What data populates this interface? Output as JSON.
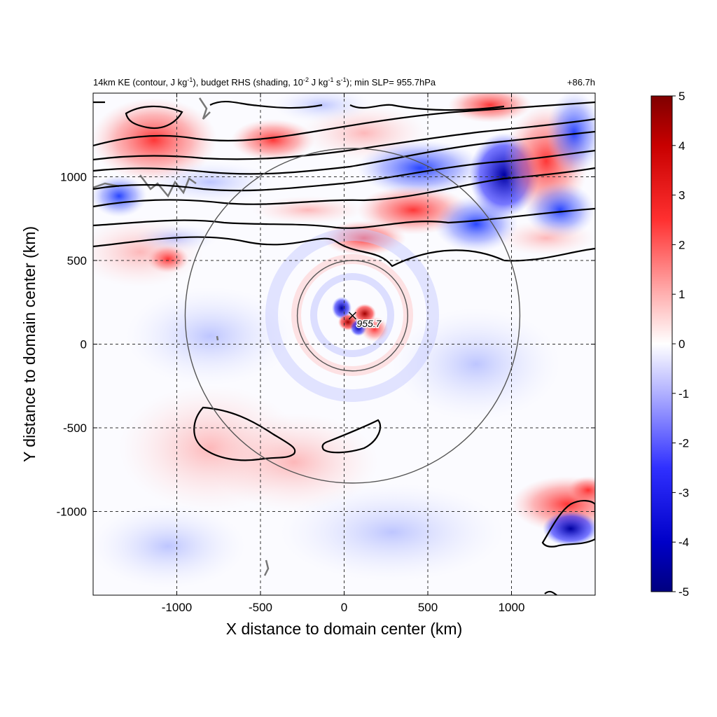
{
  "chart_data": {
    "type": "heatmap",
    "title_left_parts": {
      "p1": "14km KE (contour, J kg",
      "p1_sup": "-1",
      "p2": "), budget RHS (shading, 10",
      "p2_sup": "-2",
      "p3": " J kg",
      "p3_sup": "-1",
      "p4": " s",
      "p4_sup": "-1",
      "p5": "); min SLP= 955.7hPa"
    },
    "title_right": "+86.7h",
    "xlabel": "X distance to domain center (km)",
    "ylabel": "Y distance to domain center (km)",
    "xlim": [
      -1500,
      1500
    ],
    "ylim": [
      -1500,
      1500
    ],
    "x_ticks": [
      -1000,
      -500,
      0,
      500,
      1000
    ],
    "y_ticks": [
      -1000,
      -500,
      0,
      500,
      1000
    ],
    "x_tick_labels": [
      "-1000",
      "-500",
      "0",
      "500",
      "1000"
    ],
    "y_tick_labels": [
      "-1000",
      "-500",
      "0",
      "500",
      "1000"
    ],
    "grid": true,
    "colorbar": {
      "range": [
        -5,
        5
      ],
      "ticks": [
        5,
        4,
        3,
        2,
        1,
        0,
        -1,
        -2,
        -3,
        -4,
        -5
      ],
      "tick_labels": [
        "5",
        "4",
        "3",
        "2",
        "1",
        "0",
        "-1",
        "-2",
        "-3",
        "-4",
        "-5"
      ],
      "colormap": "blue-white-red",
      "color_low": "#00007f",
      "color_mid": "#ffffff",
      "color_high": "#7f0000"
    },
    "storm_center": {
      "x": 50,
      "y": 170,
      "label": "955.7"
    },
    "range_rings_km": [
      330,
      1000
    ],
    "colors": {
      "ring": "#555555",
      "contour": "#000000",
      "coast": "#777777",
      "grid": "#333333"
    }
  }
}
